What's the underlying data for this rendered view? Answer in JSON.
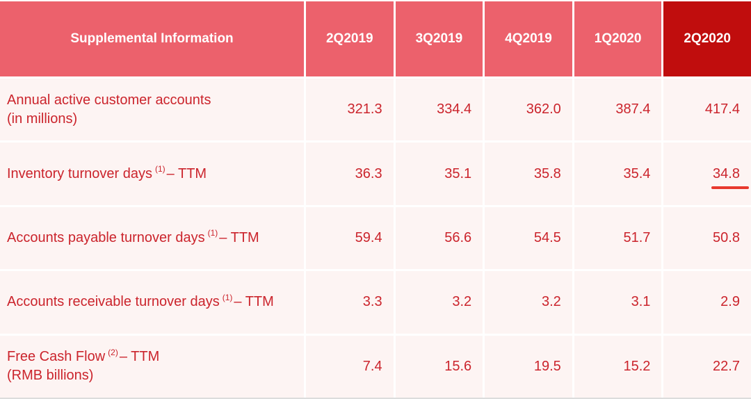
{
  "table": {
    "header": {
      "label": "Supplemental Information",
      "columns": [
        "2Q2019",
        "3Q2019",
        "4Q2019",
        "1Q2020",
        "2Q2020"
      ]
    },
    "rows": [
      {
        "label": "Annual active customer accounts",
        "sup": "",
        "after": "",
        "line2": "(in millions)",
        "values": [
          "321.3",
          "334.4",
          "362.0",
          "387.4",
          "417.4"
        ]
      },
      {
        "label": "Inventory turnover days",
        "sup": "(1)",
        "after": "– TTM",
        "line2": "",
        "values": [
          "36.3",
          "35.1",
          "35.8",
          "35.4",
          "34.8"
        ]
      },
      {
        "label": "Accounts payable turnover days",
        "sup": "(1)",
        "after": "– TTM",
        "line2": "",
        "values": [
          "59.4",
          "56.6",
          "54.5",
          "51.7",
          "50.8"
        ]
      },
      {
        "label": "Accounts receivable turnover days",
        "sup": "(1)",
        "after": "– TTM",
        "line2": "",
        "values": [
          "3.3",
          "3.2",
          "3.2",
          "3.1",
          "2.9"
        ]
      },
      {
        "label": "Free Cash Flow",
        "sup": "(2)",
        "after": "– TTM",
        "line2": "(RMB billions)",
        "values": [
          "7.4",
          "15.6",
          "19.5",
          "15.2",
          "22.7"
        ]
      }
    ]
  },
  "colors": {
    "header_background": "#ec616c",
    "header_highlight_background": "#c00d0d",
    "row_background": "#fdf4f3",
    "text_red": "#cb242c",
    "underline_red": "#e8382d",
    "bottom_border": "#dcdcdc"
  }
}
